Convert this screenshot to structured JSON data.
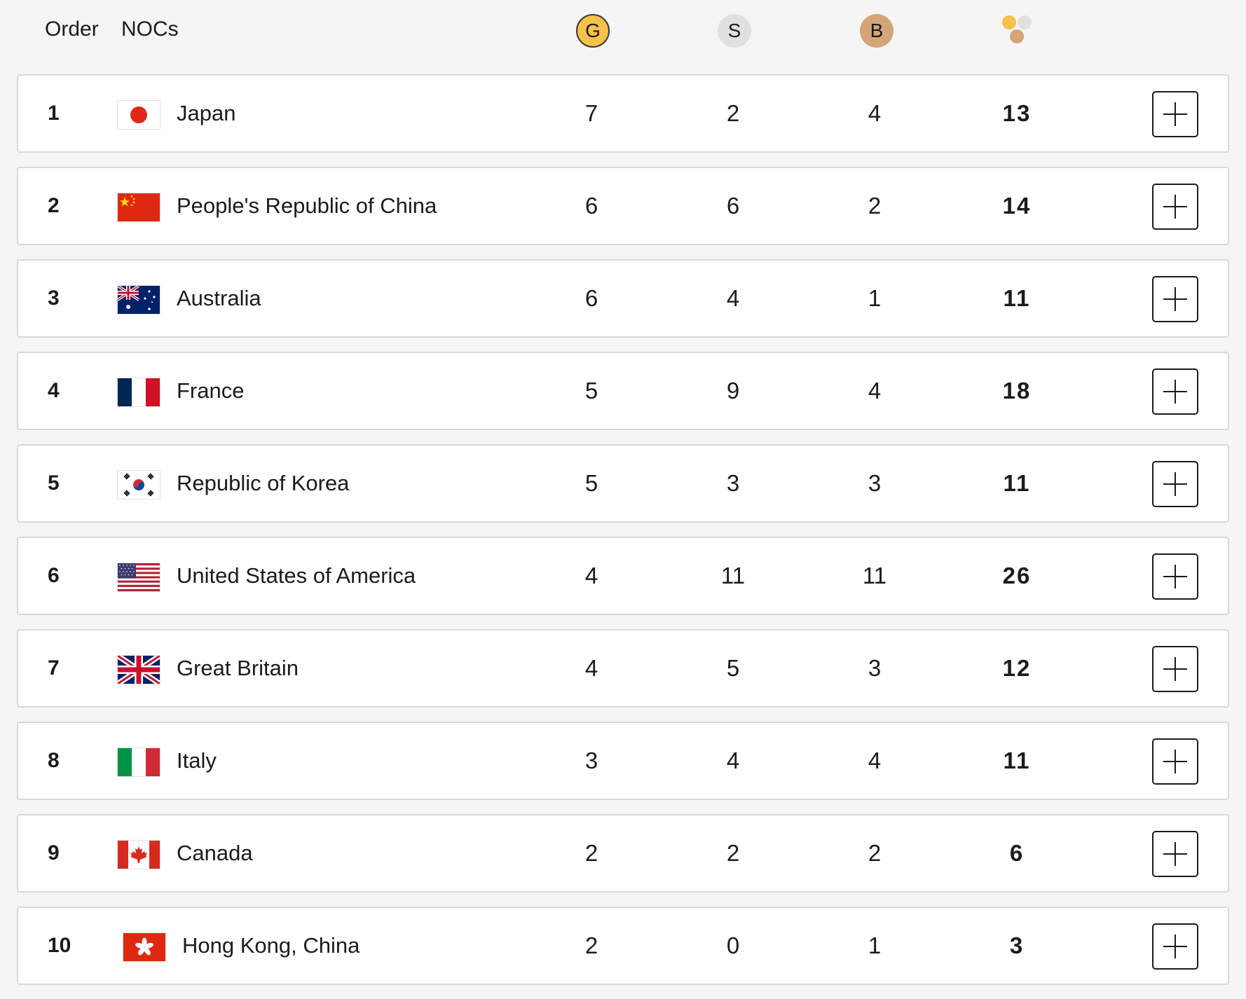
{
  "header": {
    "order_label": "Order",
    "nocs_label": "NOCs",
    "gold_label": "G",
    "silver_label": "S",
    "bronze_label": "B",
    "total_icon": "medals-total-icon"
  },
  "colors": {
    "gold": "#f7c24a",
    "silver": "#e0e0e0",
    "bronze": "#d3a577",
    "row_border": "#d9d9d9",
    "background": "#f5f5f5"
  },
  "rows": [
    {
      "rank": "1",
      "country": "Japan",
      "flag": "japan-flag",
      "gold": "7",
      "silver": "2",
      "bronze": "4",
      "total": "13"
    },
    {
      "rank": "2",
      "country": "People's Republic of China",
      "flag": "china-flag",
      "gold": "6",
      "silver": "6",
      "bronze": "2",
      "total": "14"
    },
    {
      "rank": "3",
      "country": "Australia",
      "flag": "australia-flag",
      "gold": "6",
      "silver": "4",
      "bronze": "1",
      "total": "11"
    },
    {
      "rank": "4",
      "country": "France",
      "flag": "france-flag",
      "gold": "5",
      "silver": "9",
      "bronze": "4",
      "total": "18"
    },
    {
      "rank": "5",
      "country": "Republic of Korea",
      "flag": "korea-flag",
      "gold": "5",
      "silver": "3",
      "bronze": "3",
      "total": "11"
    },
    {
      "rank": "6",
      "country": "United States of America",
      "flag": "usa-flag",
      "gold": "4",
      "silver": "11",
      "bronze": "11",
      "total": "26"
    },
    {
      "rank": "7",
      "country": "Great Britain",
      "flag": "great-britain-flag",
      "gold": "4",
      "silver": "5",
      "bronze": "3",
      "total": "12"
    },
    {
      "rank": "8",
      "country": "Italy",
      "flag": "italy-flag",
      "gold": "3",
      "silver": "4",
      "bronze": "4",
      "total": "11"
    },
    {
      "rank": "9",
      "country": "Canada",
      "flag": "canada-flag",
      "gold": "2",
      "silver": "2",
      "bronze": "2",
      "total": "6"
    },
    {
      "rank": "10",
      "country": "Hong Kong, China",
      "flag": "hong-kong-flag",
      "gold": "2",
      "silver": "0",
      "bronze": "1",
      "total": "3"
    }
  ],
  "expand_button_icon": "plus-icon"
}
